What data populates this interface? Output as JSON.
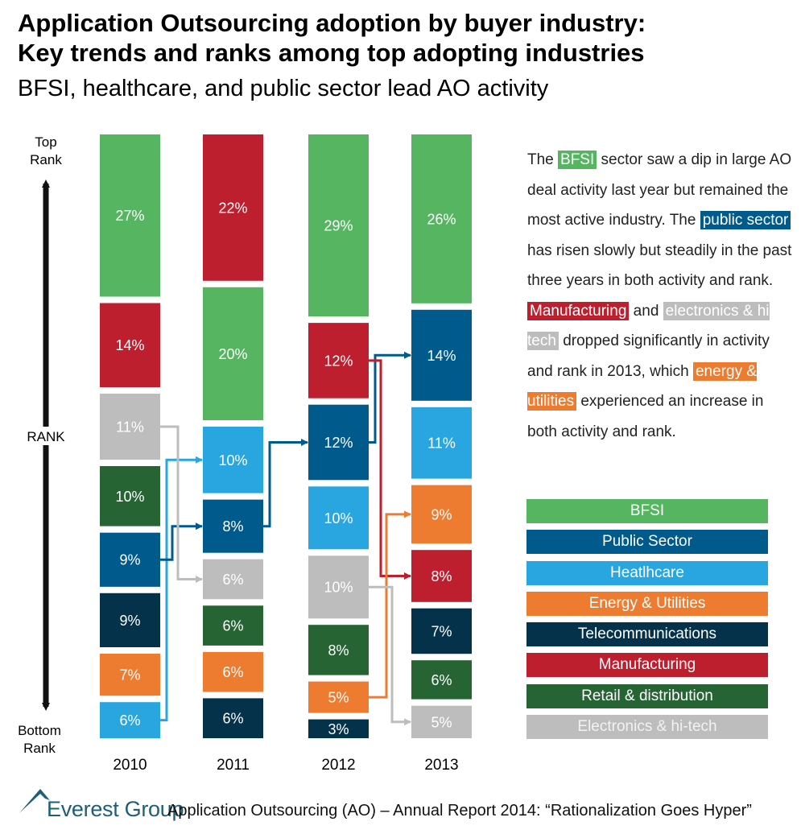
{
  "title": "Application Outsourcing adoption by buyer industry:\nKey trends and ranks among top adopting industries",
  "subtitle": "BFSI, healthcare, and public sector lead AO activity",
  "chart_data": {
    "type": "bar",
    "subtype": "stacked-rank",
    "axis_label_top": [
      "Top",
      "Rank"
    ],
    "axis_label_middle": "RANK",
    "axis_label_bottom": [
      "Bottom",
      "Rank"
    ],
    "years": [
      "2010",
      "2011",
      "2012",
      "2013"
    ],
    "series_colors": {
      "BFSI": "#55b560",
      "Public Sector": "#005a8c",
      "Heatlhcare": "#29a6e0",
      "Energy & Utilities": "#ee7c30",
      "Telecommunications": "#04324b",
      "Manufacturing": "#bd1f2e",
      "Retail & distribution": "#266434",
      "Electronics & hi-tech": "#bdbdbd"
    },
    "columns": [
      {
        "year": "2010",
        "bars": [
          {
            "industry": "BFSI",
            "value": 27,
            "label": "27%"
          },
          {
            "industry": "Manufacturing",
            "value": 14,
            "label": "14%"
          },
          {
            "industry": "Electronics & hi-tech",
            "value": 11,
            "label": "11%"
          },
          {
            "industry": "Retail & distribution",
            "value": 10,
            "label": "10%"
          },
          {
            "industry": "Public Sector",
            "value": 9,
            "label": "9%"
          },
          {
            "industry": "Telecommunications",
            "value": 9,
            "label": "9%"
          },
          {
            "industry": "Energy & Utilities",
            "value": 7,
            "label": "7%"
          },
          {
            "industry": "Heatlhcare",
            "value": 6,
            "label": "6%"
          }
        ]
      },
      {
        "year": "2011",
        "bars": [
          {
            "industry": "Manufacturing",
            "value": 22,
            "label": "22%"
          },
          {
            "industry": "BFSI",
            "value": 20,
            "label": "20%"
          },
          {
            "industry": "Heatlhcare",
            "value": 10,
            "label": "10%"
          },
          {
            "industry": "Public Sector",
            "value": 8,
            "label": "8%"
          },
          {
            "industry": "Electronics & hi-tech",
            "value": 6,
            "label": "6%"
          },
          {
            "industry": "Retail & distribution",
            "value": 6,
            "label": "6%"
          },
          {
            "industry": "Energy & Utilities",
            "value": 6,
            "label": "6%"
          },
          {
            "industry": "Telecommunications",
            "value": 6,
            "label": "6%"
          }
        ]
      },
      {
        "year": "2012",
        "bars": [
          {
            "industry": "BFSI",
            "value": 29,
            "label": "29%"
          },
          {
            "industry": "Manufacturing",
            "value": 12,
            "label": "12%"
          },
          {
            "industry": "Public Sector",
            "value": 12,
            "label": "12%"
          },
          {
            "industry": "Heatlhcare",
            "value": 10,
            "label": "10%"
          },
          {
            "industry": "Electronics & hi-tech",
            "value": 10,
            "label": "10%"
          },
          {
            "industry": "Retail & distribution",
            "value": 8,
            "label": "8%"
          },
          {
            "industry": "Energy & Utilities",
            "value": 5,
            "label": "5%"
          },
          {
            "industry": "Telecommunications",
            "value": 3,
            "label": "3%"
          }
        ]
      },
      {
        "year": "2013",
        "bars": [
          {
            "industry": "BFSI",
            "value": 26,
            "label": "26%"
          },
          {
            "industry": "Public Sector",
            "value": 14,
            "label": "14%"
          },
          {
            "industry": "Heatlhcare",
            "value": 11,
            "label": "11%"
          },
          {
            "industry": "Energy & Utilities",
            "value": 9,
            "label": "9%"
          },
          {
            "industry": "Manufacturing",
            "value": 8,
            "label": "8%"
          },
          {
            "industry": "Telecommunications",
            "value": 7,
            "label": "7%"
          },
          {
            "industry": "Retail & distribution",
            "value": 6,
            "label": "6%"
          },
          {
            "industry": "Electronics & hi-tech",
            "value": 5,
            "label": "5%"
          }
        ]
      }
    ],
    "trend_arrows": [
      {
        "industry": "Heatlhcare",
        "from_year": "2010",
        "to_year": "2011"
      },
      {
        "industry": "Public Sector",
        "from_year": "2010",
        "to_year": "2011"
      },
      {
        "industry": "Electronics & hi-tech",
        "from_year": "2010",
        "to_year": "2011"
      },
      {
        "industry": "Public Sector",
        "from_year": "2011",
        "to_year": "2012"
      },
      {
        "industry": "Public Sector",
        "from_year": "2012",
        "to_year": "2013"
      },
      {
        "industry": "Manufacturing",
        "from_year": "2012",
        "to_year": "2013"
      },
      {
        "industry": "Energy & Utilities",
        "from_year": "2012",
        "to_year": "2013"
      },
      {
        "industry": "Electronics & hi-tech",
        "from_year": "2012",
        "to_year": "2013"
      }
    ]
  },
  "commentary": {
    "p1_a": "The ",
    "p1_bfsi": "BFSI",
    "p1_b": " sector saw a dip in large AO deal activity last year but remained the most active industry. The ",
    "p1_public": "public sector",
    "p1_c": " has risen slowly but steadily in the past three years in both activity and rank. ",
    "p1_mfg": "Manufacturing",
    "p1_d": " and ",
    "p1_elec": "electronics & hi tech",
    "p1_e": " dropped significantly in activity and rank in 2013, which ",
    "p1_energy": "energy & utilities",
    "p1_f": " experienced an increase in both activity and rank."
  },
  "legend": [
    {
      "label": "BFSI",
      "color": "#55b560",
      "text_color": "#ffffff"
    },
    {
      "label": "Public Sector",
      "color": "#005a8c",
      "text_color": "#ffffff"
    },
    {
      "label": "Heatlhcare",
      "color": "#29a6e0",
      "text_color": "#ffffff"
    },
    {
      "label": "Energy & Utilities",
      "color": "#ee7c30",
      "text_color": "#ffffff"
    },
    {
      "label": "Telecommunications",
      "color": "#04324b",
      "text_color": "#ffffff"
    },
    {
      "label": "Manufacturing",
      "color": "#bd1f2e",
      "text_color": "#ffffff"
    },
    {
      "label": "Retail & distribution",
      "color": "#266434",
      "text_color": "#ffffff"
    },
    {
      "label": "Electronics & hi-tech",
      "color": "#bdbdbd",
      "text_color": "#f2f2f2"
    }
  ],
  "footer": {
    "logo_text": "Everest Group",
    "report": "Application Outsourcing (AO) – Annual Report 2014: “Rationalization Goes Hyper”",
    "logo_color": "#1e5f78"
  }
}
